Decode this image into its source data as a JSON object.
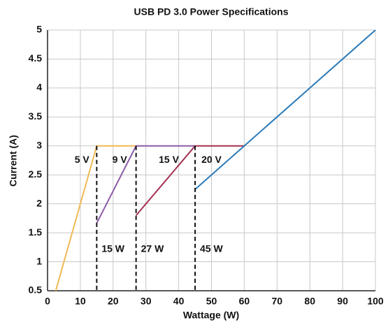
{
  "chart_data": {
    "type": "line",
    "title": "USB PD 3.0 Power Specifications",
    "xlabel": "Wattage (W)",
    "ylabel": "Current (A)",
    "series": [
      {
        "name": "5 V",
        "color": "#f0b955",
        "x": [
          2.5,
          15,
          27
        ],
        "values": [
          0.5,
          3,
          3
        ]
      },
      {
        "name": "9 V",
        "color": "#8b5ca8",
        "x": [
          15,
          27,
          45
        ],
        "values": [
          1.667,
          3,
          3
        ]
      },
      {
        "name": "15 V",
        "color": "#a3304f",
        "x": [
          27,
          45,
          60
        ],
        "values": [
          1.8,
          3,
          3
        ]
      },
      {
        "name": "20 V",
        "color": "#2b7bb9",
        "x": [
          45,
          100
        ],
        "values": [
          2.25,
          5
        ]
      }
    ],
    "vlines": [
      {
        "value": 15,
        "label": "15 W"
      },
      {
        "value": 27,
        "label": "27 W"
      },
      {
        "value": 45,
        "label": "45 W"
      }
    ],
    "vline_top": 3,
    "xlim": [
      0,
      100
    ],
    "xticks": [
      0,
      10,
      20,
      30,
      40,
      50,
      60,
      70,
      80,
      90,
      100
    ],
    "ylim": [
      0.5,
      5
    ],
    "yticks": [
      0.5,
      1,
      1.5,
      2,
      2.5,
      3,
      3.5,
      4,
      4.5,
      5
    ],
    "grid": true
  }
}
